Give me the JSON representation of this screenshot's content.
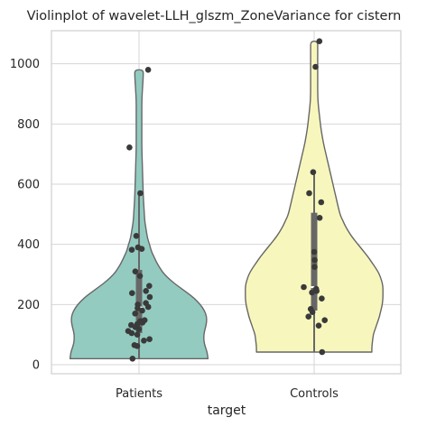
{
  "chart_data": {
    "type": "violin",
    "title": "Violinplot of wavelet-LLH_glszm_ZoneVariance for cistern",
    "xlabel": "target",
    "ylabel": "",
    "categories": [
      "Patients",
      "Controls"
    ],
    "ylim": [
      -30,
      1110
    ],
    "yticks": [
      0,
      200,
      400,
      600,
      800,
      1000
    ],
    "grid": true,
    "colors": {
      "Patients": "#93cbc1",
      "Controls": "#f7f7bd",
      "outline": "#676767",
      "box": "#676767",
      "points": "#3a3a3a",
      "grid": "#d6d6d6"
    },
    "series": [
      {
        "category": "Patients",
        "min": 20,
        "max": 980,
        "q1": 105,
        "median": 190,
        "q3": 315,
        "whisker_low": 20,
        "whisker_high": 570,
        "density_profile": [
          [
            20,
            0.98
          ],
          [
            40,
            0.97
          ],
          [
            60,
            0.94
          ],
          [
            80,
            0.92
          ],
          [
            100,
            0.92
          ],
          [
            120,
            0.94
          ],
          [
            140,
            0.96
          ],
          [
            160,
            0.96
          ],
          [
            180,
            0.93
          ],
          [
            200,
            0.87
          ],
          [
            220,
            0.79
          ],
          [
            240,
            0.68
          ],
          [
            260,
            0.56
          ],
          [
            280,
            0.45
          ],
          [
            300,
            0.36
          ],
          [
            320,
            0.3
          ],
          [
            340,
            0.25
          ],
          [
            360,
            0.21
          ],
          [
            380,
            0.17
          ],
          [
            400,
            0.15
          ],
          [
            420,
            0.12
          ],
          [
            450,
            0.1
          ],
          [
            480,
            0.08
          ],
          [
            520,
            0.07
          ],
          [
            560,
            0.06
          ],
          [
            600,
            0.055
          ],
          [
            640,
            0.05
          ],
          [
            680,
            0.045
          ],
          [
            720,
            0.04
          ],
          [
            760,
            0.04
          ],
          [
            800,
            0.04
          ],
          [
            840,
            0.04
          ],
          [
            880,
            0.04
          ],
          [
            920,
            0.05
          ],
          [
            960,
            0.06
          ],
          [
            980,
            0.06
          ]
        ],
        "points": [
          980,
          722,
          570,
          428,
          390,
          385,
          382,
          310,
          295,
          262,
          245,
          238,
          225,
          205,
          200,
          192,
          188,
          180,
          170,
          148,
          145,
          140,
          135,
          132,
          125,
          118,
          112,
          105,
          100,
          85,
          80,
          65,
          62,
          20
        ]
      },
      {
        "category": "Controls",
        "min": 42,
        "max": 1075,
        "q1": 180,
        "median": 258,
        "q3": 505,
        "whisker_low": 42,
        "whisker_high": 640,
        "density_profile": [
          [
            42,
            0.83
          ],
          [
            60,
            0.83
          ],
          [
            80,
            0.84
          ],
          [
            100,
            0.85
          ],
          [
            120,
            0.88
          ],
          [
            140,
            0.91
          ],
          [
            160,
            0.94
          ],
          [
            180,
            0.96
          ],
          [
            200,
            0.98
          ],
          [
            220,
            0.99
          ],
          [
            240,
            0.99
          ],
          [
            260,
            0.99
          ],
          [
            280,
            0.97
          ],
          [
            300,
            0.94
          ],
          [
            320,
            0.89
          ],
          [
            340,
            0.83
          ],
          [
            360,
            0.77
          ],
          [
            380,
            0.7
          ],
          [
            400,
            0.63
          ],
          [
            420,
            0.56
          ],
          [
            440,
            0.5
          ],
          [
            460,
            0.45
          ],
          [
            480,
            0.41
          ],
          [
            500,
            0.37
          ],
          [
            540,
            0.33
          ],
          [
            580,
            0.29
          ],
          [
            620,
            0.25
          ],
          [
            660,
            0.21
          ],
          [
            700,
            0.17
          ],
          [
            740,
            0.13
          ],
          [
            780,
            0.1
          ],
          [
            820,
            0.08
          ],
          [
            860,
            0.06
          ],
          [
            900,
            0.05
          ],
          [
            950,
            0.05
          ],
          [
            1000,
            0.05
          ],
          [
            1050,
            0.05
          ],
          [
            1075,
            0.05
          ]
        ],
        "points": [
          1075,
          990,
          640,
          570,
          540,
          488,
          375,
          348,
          325,
          258,
          252,
          245,
          240,
          220,
          185,
          175,
          160,
          148,
          130,
          42
        ]
      }
    ]
  }
}
